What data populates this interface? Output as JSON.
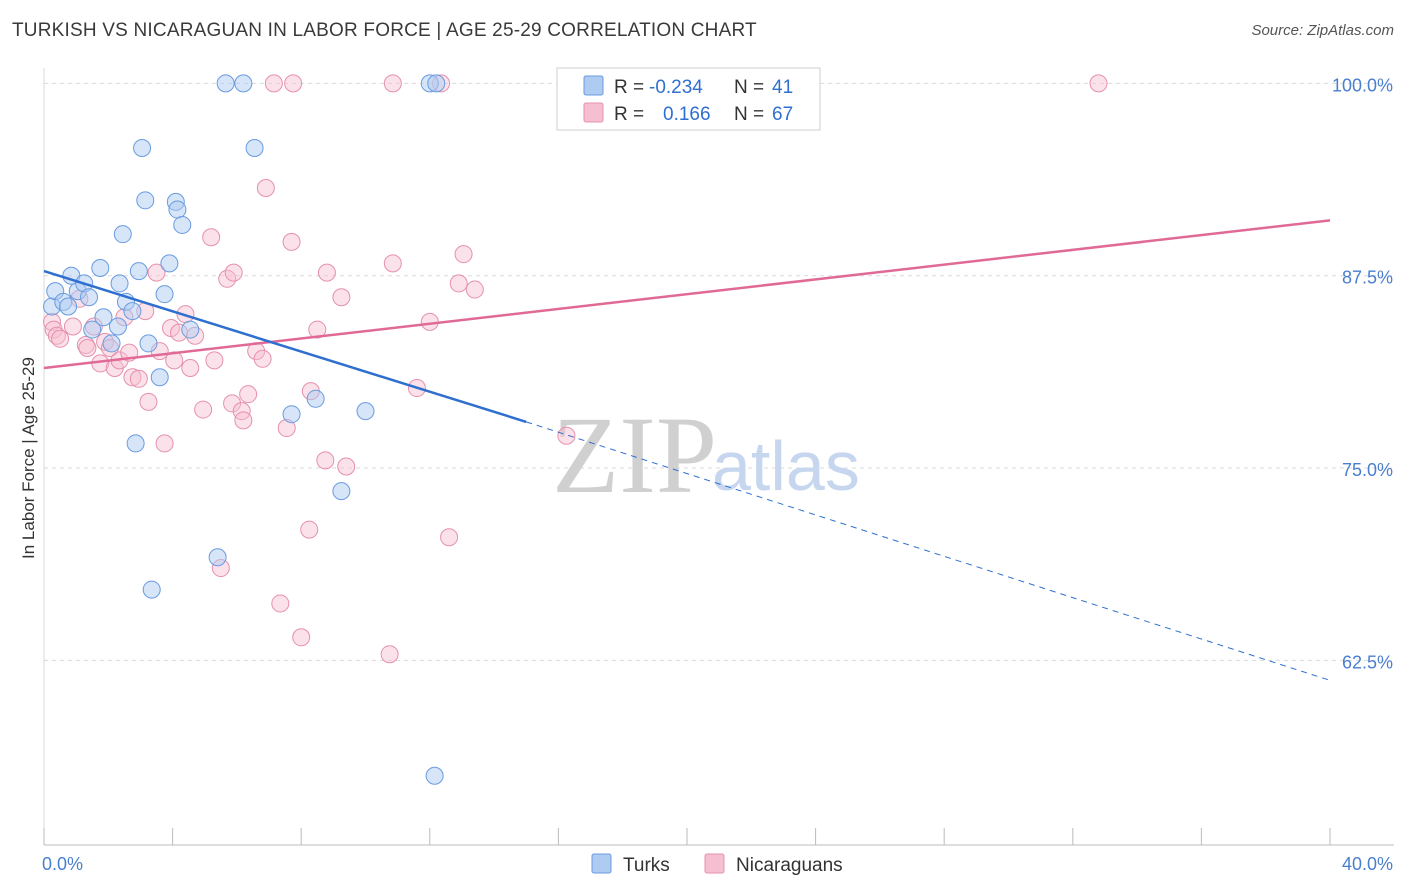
{
  "header": {
    "title": "TURKISH VS NICARAGUAN IN LABOR FORCE | AGE 25-29 CORRELATION CHART",
    "source": "Source: ZipAtlas.com"
  },
  "colors": {
    "turks_fill": "#aecbf1",
    "turks_stroke": "#6a9be0",
    "turks_line": "#2f6fd0",
    "nic_fill": "#f6bfd1",
    "nic_stroke": "#e690ad",
    "nic_line": "#e06a95",
    "grid": "#d9d9d9",
    "tick_label": "#4a7fcf"
  },
  "chart_data": {
    "type": "scatter",
    "title": "TURKISH VS NICARAGUAN IN LABOR FORCE | AGE 25-29 CORRELATION CHART",
    "xlabel": "",
    "ylabel": "In Labor Force | Age 25-29",
    "xlim": [
      0,
      40
    ],
    "ylim": [
      50.5,
      101
    ],
    "x_tick_labels": [
      "0.0%",
      "40.0%"
    ],
    "y_ticks": [
      62.5,
      75.0,
      87.5,
      100.0
    ],
    "y_tick_labels": [
      "62.5%",
      "75.0%",
      "87.5%",
      "100.0%"
    ],
    "grid": true,
    "legend_stats": [
      {
        "series": "Turks",
        "r_label": "R =",
        "r": "-0.234",
        "n_label": "N =",
        "n": "41"
      },
      {
        "series": "Nicaraguans",
        "r_label": "R =",
        "r": "0.166",
        "n_label": "N =",
        "n": "67"
      }
    ],
    "series": [
      {
        "name": "Turks",
        "points": [
          [
            0.25,
            85.5
          ],
          [
            0.35,
            86.5
          ],
          [
            0.6,
            85.8
          ],
          [
            0.75,
            85.5
          ],
          [
            0.85,
            87.5
          ],
          [
            1.05,
            86.5
          ],
          [
            1.25,
            87.0
          ],
          [
            1.4,
            86.1
          ],
          [
            1.5,
            84.0
          ],
          [
            1.75,
            88.0
          ],
          [
            1.85,
            84.8
          ],
          [
            2.1,
            83.1
          ],
          [
            2.3,
            84.2
          ],
          [
            2.35,
            87.0
          ],
          [
            2.45,
            90.2
          ],
          [
            2.55,
            85.8
          ],
          [
            2.75,
            85.2
          ],
          [
            2.85,
            76.6
          ],
          [
            2.95,
            87.8
          ],
          [
            3.05,
            95.8
          ],
          [
            3.15,
            92.4
          ],
          [
            3.25,
            83.1
          ],
          [
            3.35,
            67.1
          ],
          [
            3.6,
            80.9
          ],
          [
            3.75,
            86.3
          ],
          [
            3.9,
            88.3
          ],
          [
            4.1,
            92.3
          ],
          [
            4.15,
            91.8
          ],
          [
            4.3,
            90.8
          ],
          [
            4.55,
            84.0
          ],
          [
            5.4,
            69.2
          ],
          [
            5.65,
            100.0
          ],
          [
            6.2,
            100.0
          ],
          [
            6.55,
            95.8
          ],
          [
            7.7,
            78.5
          ],
          [
            8.45,
            79.5
          ],
          [
            9.25,
            73.5
          ],
          [
            10.0,
            78.7
          ],
          [
            12.0,
            100.0
          ],
          [
            12.2,
            100.0
          ],
          [
            12.15,
            55.0
          ]
        ]
      },
      {
        "name": "Nicaraguans",
        "points": [
          [
            0.25,
            84.5
          ],
          [
            0.3,
            84.0
          ],
          [
            0.4,
            83.6
          ],
          [
            0.5,
            83.4
          ],
          [
            0.9,
            84.2
          ],
          [
            1.1,
            86.0
          ],
          [
            1.3,
            83.0
          ],
          [
            1.35,
            82.8
          ],
          [
            1.55,
            84.2
          ],
          [
            1.75,
            81.8
          ],
          [
            1.9,
            83.2
          ],
          [
            2.05,
            82.8
          ],
          [
            2.2,
            81.5
          ],
          [
            2.35,
            82.0
          ],
          [
            2.5,
            84.8
          ],
          [
            2.65,
            82.5
          ],
          [
            2.75,
            80.9
          ],
          [
            2.95,
            80.8
          ],
          [
            3.15,
            85.2
          ],
          [
            3.25,
            79.3
          ],
          [
            3.5,
            87.7
          ],
          [
            3.6,
            82.6
          ],
          [
            3.75,
            76.6
          ],
          [
            3.95,
            84.1
          ],
          [
            4.05,
            82.0
          ],
          [
            4.2,
            83.8
          ],
          [
            4.4,
            85.0
          ],
          [
            4.55,
            81.5
          ],
          [
            4.7,
            83.6
          ],
          [
            4.95,
            78.8
          ],
          [
            5.2,
            90.0
          ],
          [
            5.3,
            82.0
          ],
          [
            5.5,
            68.5
          ],
          [
            5.7,
            87.3
          ],
          [
            5.85,
            79.2
          ],
          [
            5.9,
            87.7
          ],
          [
            6.15,
            78.7
          ],
          [
            6.2,
            78.1
          ],
          [
            6.35,
            79.8
          ],
          [
            6.6,
            82.6
          ],
          [
            6.8,
            82.1
          ],
          [
            6.9,
            93.2
          ],
          [
            7.35,
            66.2
          ],
          [
            7.55,
            77.6
          ],
          [
            7.7,
            89.7
          ],
          [
            8.0,
            64.0
          ],
          [
            8.3,
            80.0
          ],
          [
            8.25,
            71.0
          ],
          [
            8.5,
            84.0
          ],
          [
            8.75,
            75.5
          ],
          [
            8.8,
            87.7
          ],
          [
            9.25,
            86.1
          ],
          [
            9.4,
            75.1
          ],
          [
            10.85,
            88.3
          ],
          [
            10.75,
            62.9
          ],
          [
            10.85,
            100.0
          ],
          [
            7.15,
            100.0
          ],
          [
            7.75,
            100.0
          ],
          [
            11.6,
            80.2
          ],
          [
            12.0,
            84.5
          ],
          [
            12.35,
            100.0
          ],
          [
            12.6,
            70.5
          ],
          [
            12.9,
            87.0
          ],
          [
            13.05,
            88.9
          ],
          [
            13.4,
            86.6
          ],
          [
            16.25,
            77.1
          ],
          [
            32.8,
            100.0
          ]
        ]
      }
    ],
    "trendlines": [
      {
        "series": "Turks",
        "x0": 0,
        "y0": 87.8,
        "x1": 15.0,
        "y1": 78.0,
        "dashed_to_x": 40,
        "dashed_to_y": 61.2
      },
      {
        "series": "Nicaraguans",
        "x0": 0,
        "y0": 81.5,
        "x1": 40,
        "y1": 91.1
      }
    ],
    "watermark": {
      "part1": "ZIP",
      "part2": "atlas"
    }
  }
}
